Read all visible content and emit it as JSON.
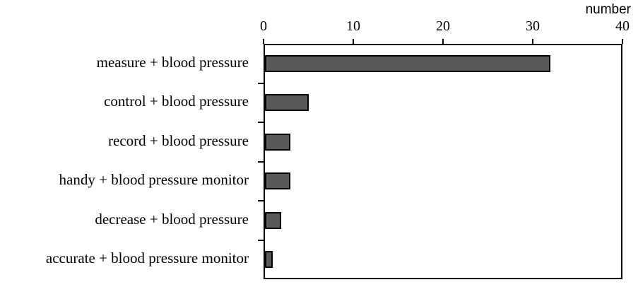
{
  "chart_data": {
    "type": "bar",
    "orientation": "horizontal",
    "x_axis_label": "number",
    "categories": [
      "measure + blood pressure",
      "control + blood pressure",
      "record + blood pressure",
      "handy + blood pressure monitor",
      "decrease + blood pressure",
      "accurate + blood pressure monitor"
    ],
    "values": [
      32,
      5,
      3,
      3,
      2,
      1
    ],
    "xlim": [
      0,
      40
    ],
    "xticks": [
      0,
      10,
      20,
      30,
      40
    ],
    "xticks_position": "top",
    "grid": false,
    "legend": false,
    "bar_color": "#595959",
    "bar_border_color": "#000000",
    "axis_color": "#000000",
    "background_color": "#ffffff"
  }
}
